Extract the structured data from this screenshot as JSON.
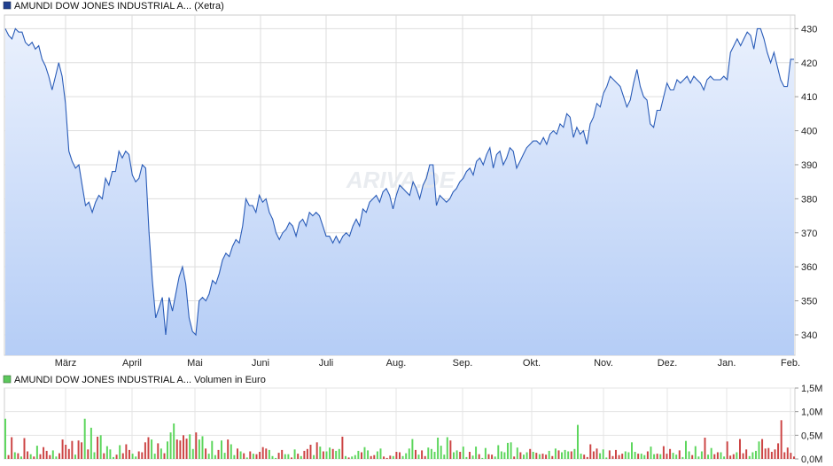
{
  "price_panel": {
    "legend": "AMUNDI DOW JONES INDUSTRIAL A... (Xetra)",
    "legend_color": "#1f3f8f",
    "line_color": "#2a5cb8",
    "fill_top": "#e9f0fd",
    "fill_bottom": "#b5cdf6",
    "watermark": "ARIVA.DE"
  },
  "volume_panel": {
    "legend": "AMUNDI DOW JONES INDUSTRIAL A... Volumen in Euro",
    "legend_color": "#5cc85c",
    "up_color": "#5cd65c",
    "down_color": "#cc4444"
  },
  "chart_data": [
    {
      "type": "line",
      "title": "AMUNDI DOW JONES INDUSTRIAL A... (Xetra)",
      "xlabel": "",
      "ylabel": "",
      "x_tick_labels": [
        "März",
        "April",
        "Mai",
        "Juni",
        "Juli",
        "Aug.",
        "Sep.",
        "Okt.",
        "Nov.",
        "Dez.",
        "Jan.",
        "Feb."
      ],
      "y_ticks": [
        340,
        350,
        360,
        370,
        380,
        390,
        400,
        410,
        420,
        430
      ],
      "ylim": [
        334,
        434
      ],
      "grid": true,
      "series": [
        {
          "name": "AMUNDI DOW JONES INDUSTRIAL A... (Xetra)",
          "values": [
            430,
            428,
            427,
            430,
            429,
            429,
            426,
            425,
            426,
            424,
            425,
            421,
            419,
            416,
            412,
            416,
            420,
            416,
            408,
            394,
            391,
            389,
            390,
            384,
            378,
            379,
            376,
            379,
            381,
            380,
            386,
            384,
            388,
            388,
            394,
            392,
            394,
            393,
            387,
            385,
            386,
            390,
            389,
            370,
            356,
            345,
            348,
            351,
            340,
            351,
            347,
            352,
            357,
            360,
            355,
            345,
            341,
            340,
            350,
            351,
            350,
            352,
            356,
            355,
            358,
            362,
            364,
            363,
            366,
            368,
            367,
            372,
            380,
            378,
            378,
            376,
            381,
            379,
            380,
            376,
            374,
            370,
            368,
            370,
            371,
            373,
            372,
            369,
            373,
            374,
            372,
            376,
            375,
            376,
            375,
            372,
            369,
            369,
            367,
            369,
            367,
            369,
            370,
            369,
            372,
            374,
            372,
            377,
            376,
            379,
            380,
            381,
            379,
            382,
            383,
            381,
            377,
            381,
            384,
            383,
            382,
            381,
            385,
            383,
            380,
            384,
            386,
            390,
            390,
            378,
            381,
            380,
            379,
            380,
            382,
            383,
            385,
            386,
            388,
            389,
            387,
            391,
            392,
            390,
            393,
            395,
            389,
            393,
            394,
            390,
            392,
            395,
            394,
            389,
            391,
            393,
            395,
            396,
            397,
            397,
            396,
            398,
            396,
            399,
            400,
            399,
            402,
            401,
            405,
            404,
            398,
            401,
            399,
            400,
            396,
            402,
            404,
            408,
            407,
            411,
            413,
            416,
            415,
            414,
            413,
            410,
            407,
            409,
            414,
            418,
            413,
            410,
            409,
            402,
            401,
            406,
            406,
            410,
            414,
            412,
            412,
            415,
            414,
            415,
            416,
            414,
            416,
            415,
            414,
            412,
            415,
            416,
            415,
            415,
            415,
            416,
            415,
            423,
            425,
            427,
            425,
            427,
            429,
            428,
            424,
            430,
            430,
            427,
            423,
            420,
            423,
            419,
            415,
            413,
            413,
            421,
            421
          ]
        }
      ]
    },
    {
      "type": "bar",
      "title": "AMUNDI DOW JONES INDUSTRIAL A... Volumen in Euro",
      "xlabel": "",
      "ylabel": "",
      "y_tick_labels": [
        "0,0M",
        "0,5M",
        "1,0M",
        "1,5M"
      ],
      "ylim": [
        0,
        1.5
      ],
      "unit": "Mio. Euro",
      "grid": true,
      "series": [
        {
          "name": "AMUNDI DOW JONES INDUSTRIAL A... Volumen in Euro",
          "values": [
            0.85,
            0.08,
            0.46,
            0.14,
            0.12,
            0.05,
            0.44,
            0.16,
            0.1,
            0.05,
            0.28,
            0.1,
            0.25,
            0.17,
            0.08,
            0.18,
            0.05,
            0.12,
            0.41,
            0.3,
            0.21,
            0.38,
            0.09,
            0.39,
            0.35,
            0.85,
            0.2,
            0.66,
            0.14,
            0.47,
            0.5,
            0.12,
            0.27,
            0.2,
            0.04,
            0.09,
            0.29,
            0.12,
            0.31,
            0.19,
            0.11,
            0.05,
            0.16,
            0.14,
            0.35,
            0.46,
            0.41,
            0.11,
            0.33,
            0.22,
            0.12,
            0.37,
            0.56,
            0.75,
            0.41,
            0.39,
            0.5,
            0.43,
            0.52,
            0.21,
            0.56,
            0.41,
            0.48,
            0.22,
            0.11,
            0.38,
            0.08,
            0.19,
            0.39,
            0.13,
            0.41,
            0.31,
            0.08,
            0.22,
            0.16,
            0.12,
            0.03,
            0.16,
            0.11,
            0.1,
            0.15,
            0.25,
            0.22,
            0.19,
            0.06,
            0.02,
            0.13,
            0.19,
            0.1,
            0.1,
            0.03,
            0.2,
            0.11,
            0.06,
            0.17,
            0.21,
            0.3,
            0.08,
            0.35,
            0.26,
            0.16,
            0.16,
            0.24,
            0.21,
            0.17,
            0.21,
            0.47,
            0.06,
            0.03,
            0.05,
            0.08,
            0.17,
            0.14,
            0.25,
            0.18,
            0.06,
            0.08,
            0.16,
            0.22,
            0.05,
            0.02,
            0.07,
            0.06,
            0.15,
            0.14,
            0.06,
            0.12,
            0.22,
            0.42,
            0.19,
            0.09,
            0.18,
            0.06,
            0.24,
            0.21,
            0.15,
            0.45,
            0.28,
            0.09,
            0.46,
            0.39,
            0.14,
            0.18,
            0.15,
            0.26,
            0.04,
            0.15,
            0.07,
            0.26,
            0.1,
            0.02,
            0.23,
            0.1,
            0.09,
            0.05,
            0.29,
            0.16,
            0.14,
            0.34,
            0.35,
            0.05,
            0.24,
            0.14,
            0.09,
            0.14,
            0.21,
            0.15,
            0.13,
            0.1,
            0.11,
            0.09,
            0.17,
            0.06,
            0.22,
            0.18,
            0.14,
            0.19,
            0.16,
            0.16,
            0.21,
            0.72,
            0.11,
            0.09,
            0.04,
            0.31,
            0.16,
            0.22,
            0.12,
            0.2,
            0.03,
            0.18,
            0.06,
            0.19,
            0.08,
            0.11,
            0.16,
            0.14,
            0.35,
            0.15,
            0.11,
            0.11,
            0.08,
            0.16,
            0.26,
            0.1,
            0.11,
            0.1,
            0.27,
            0.11,
            0.21,
            0.13,
            0.09,
            0.18,
            0.04,
            0.38,
            0.16,
            0.08,
            0.27,
            0.05,
            0.16,
            0.45,
            0.09,
            0.23,
            0.1,
            0.14,
            0.14,
            0.05,
            0.37,
            0.07,
            0.1,
            0.14,
            0.42,
            0.12,
            0.2,
            0.06,
            0.14,
            0.17,
            0.37,
            0.42,
            0.22,
            0.23,
            0.15,
            0.2,
            0.33,
            0.82,
            0.14,
            0.24,
            0.13,
            0.05
          ]
        }
      ]
    }
  ]
}
